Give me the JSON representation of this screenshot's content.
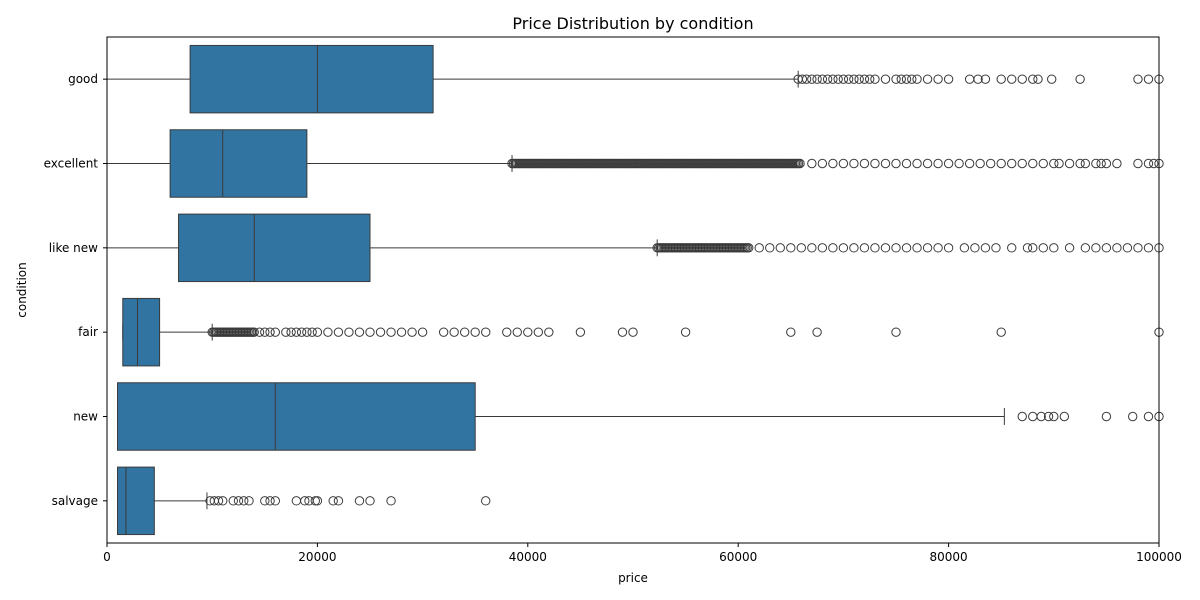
{
  "chart_data": {
    "type": "boxplot",
    "orientation": "horizontal",
    "title": "Price Distribution by condition",
    "xlabel": "price",
    "ylabel": "condition",
    "xlim": [
      0,
      100000
    ],
    "xticks": [
      0,
      20000,
      40000,
      60000,
      80000,
      100000
    ],
    "xtick_labels": [
      "0",
      "20000",
      "40000",
      "60000",
      "80000",
      "100000"
    ],
    "color": "#3274a1",
    "grid": false,
    "categories": [
      "good",
      "excellent",
      "like new",
      "fair",
      "new",
      "salvage"
    ],
    "boxes": [
      {
        "category": "good",
        "whisker_low": 0,
        "q1": 7900,
        "median": 20000,
        "q3": 31000,
        "whisker_high": 65700,
        "outliers": [
          65700,
          66100,
          66500,
          67000,
          67500,
          68000,
          68500,
          69000,
          69500,
          70000,
          70500,
          71000,
          71500,
          72000,
          72500,
          73000,
          74000,
          75000,
          75500,
          76000,
          76500,
          77000,
          78000,
          79000,
          80000,
          82000,
          82800,
          83500,
          85000,
          86000,
          87000,
          88000,
          88500,
          89800,
          92500,
          98000,
          99000,
          100000
        ]
      },
      {
        "category": "excellent",
        "whisker_low": 0,
        "q1": 6000,
        "median": 11000,
        "q3": 19000,
        "whisker_high": 38500,
        "outlier_dense_range": [
          38500,
          66000
        ],
        "outliers": [
          67000,
          68000,
          69000,
          70000,
          71000,
          72000,
          73000,
          74000,
          75000,
          76000,
          77000,
          78000,
          79000,
          80000,
          81000,
          82000,
          83000,
          84000,
          85000,
          86000,
          87000,
          88000,
          89000,
          90000,
          90500,
          91500,
          92500,
          93000,
          94000,
          94500,
          95000,
          96000,
          98000,
          99000,
          99500,
          100000
        ]
      },
      {
        "category": "like new",
        "whisker_low": 0,
        "q1": 6800,
        "median": 14000,
        "q3": 25000,
        "whisker_high": 52300,
        "outlier_dense_range": [
          52300,
          61000
        ],
        "outliers": [
          62000,
          63000,
          64000,
          65000,
          66000,
          67000,
          68000,
          69000,
          70000,
          71000,
          72000,
          73000,
          74000,
          75000,
          76000,
          77000,
          78000,
          79000,
          80000,
          81500,
          82500,
          83500,
          84500,
          86000,
          87500,
          88000,
          89000,
          90000,
          91500,
          93000,
          94000,
          95000,
          96000,
          97000,
          98000,
          99000,
          100000
        ]
      },
      {
        "category": "fair",
        "whisker_low": 1500,
        "q1": 1500,
        "median": 2900,
        "q3": 5000,
        "whisker_high": 10000,
        "outlier_dense_range": [
          10000,
          14000
        ],
        "outliers": [
          14500,
          15000,
          15500,
          16000,
          17000,
          17500,
          18000,
          18500,
          19000,
          19500,
          20000,
          21000,
          22000,
          23000,
          24000,
          25000,
          26000,
          27000,
          28000,
          29000,
          30000,
          32000,
          33000,
          34000,
          35000,
          36000,
          38000,
          39000,
          40000,
          41000,
          42000,
          45000,
          49000,
          50000,
          55000,
          65000,
          67500,
          75000,
          85000,
          100000
        ]
      },
      {
        "category": "new",
        "whisker_low": 1000,
        "q1": 1000,
        "median": 16000,
        "q3": 35000,
        "whisker_high": 85300,
        "outliers": [
          87000,
          88000,
          88800,
          89500,
          90000,
          91000,
          95000,
          97500,
          99000,
          100000
        ]
      },
      {
        "category": "salvage",
        "whisker_low": 1000,
        "q1": 1000,
        "median": 1800,
        "q3": 4500,
        "whisker_high": 9500,
        "outliers": [
          9800,
          10200,
          10600,
          11000,
          12000,
          12500,
          13000,
          13500,
          15000,
          15500,
          16000,
          18000,
          18800,
          19200,
          19800,
          20000,
          21500,
          22000,
          24000,
          25000,
          27000,
          36000
        ]
      }
    ]
  }
}
